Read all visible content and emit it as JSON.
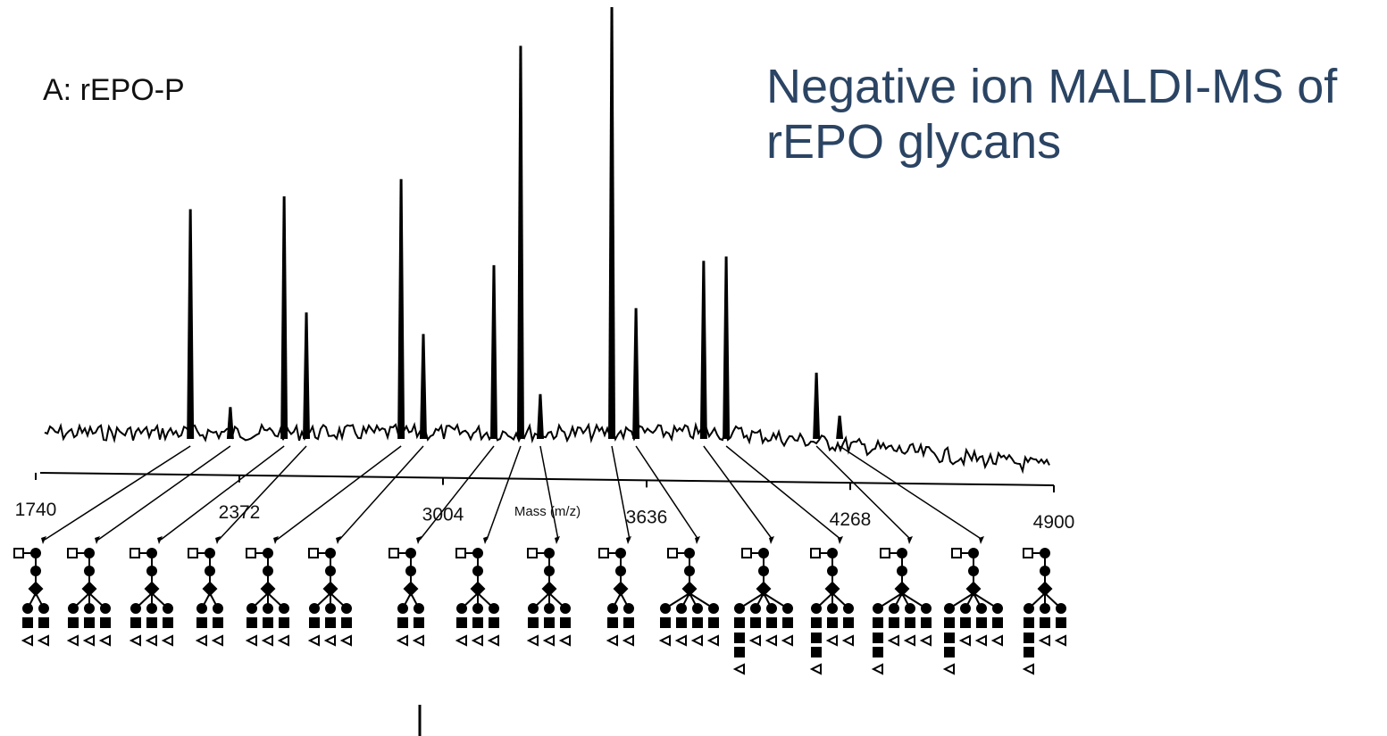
{
  "slide_title": "Negative ion MALDI-MS of rEPO glycans",
  "chart_data": {
    "type": "spectrum",
    "title": "A: rEPO-P",
    "x_label": "Mass (m/z)",
    "x": [
      2220,
      2344,
      2511,
      2580,
      2874,
      2943,
      3162,
      3245,
      3306,
      3528,
      3603,
      3813,
      3883,
      4163,
      4235
    ],
    "values": [
      53,
      7,
      56,
      29,
      60,
      24,
      40,
      91,
      10,
      100,
      30,
      41,
      42,
      15,
      5
    ],
    "color": "#000000",
    "xlim": [
      1740,
      4900
    ],
    "xticks": [
      1740,
      2372,
      3004,
      3636,
      4268,
      4900
    ],
    "ylim": [
      0,
      100
    ]
  }
}
